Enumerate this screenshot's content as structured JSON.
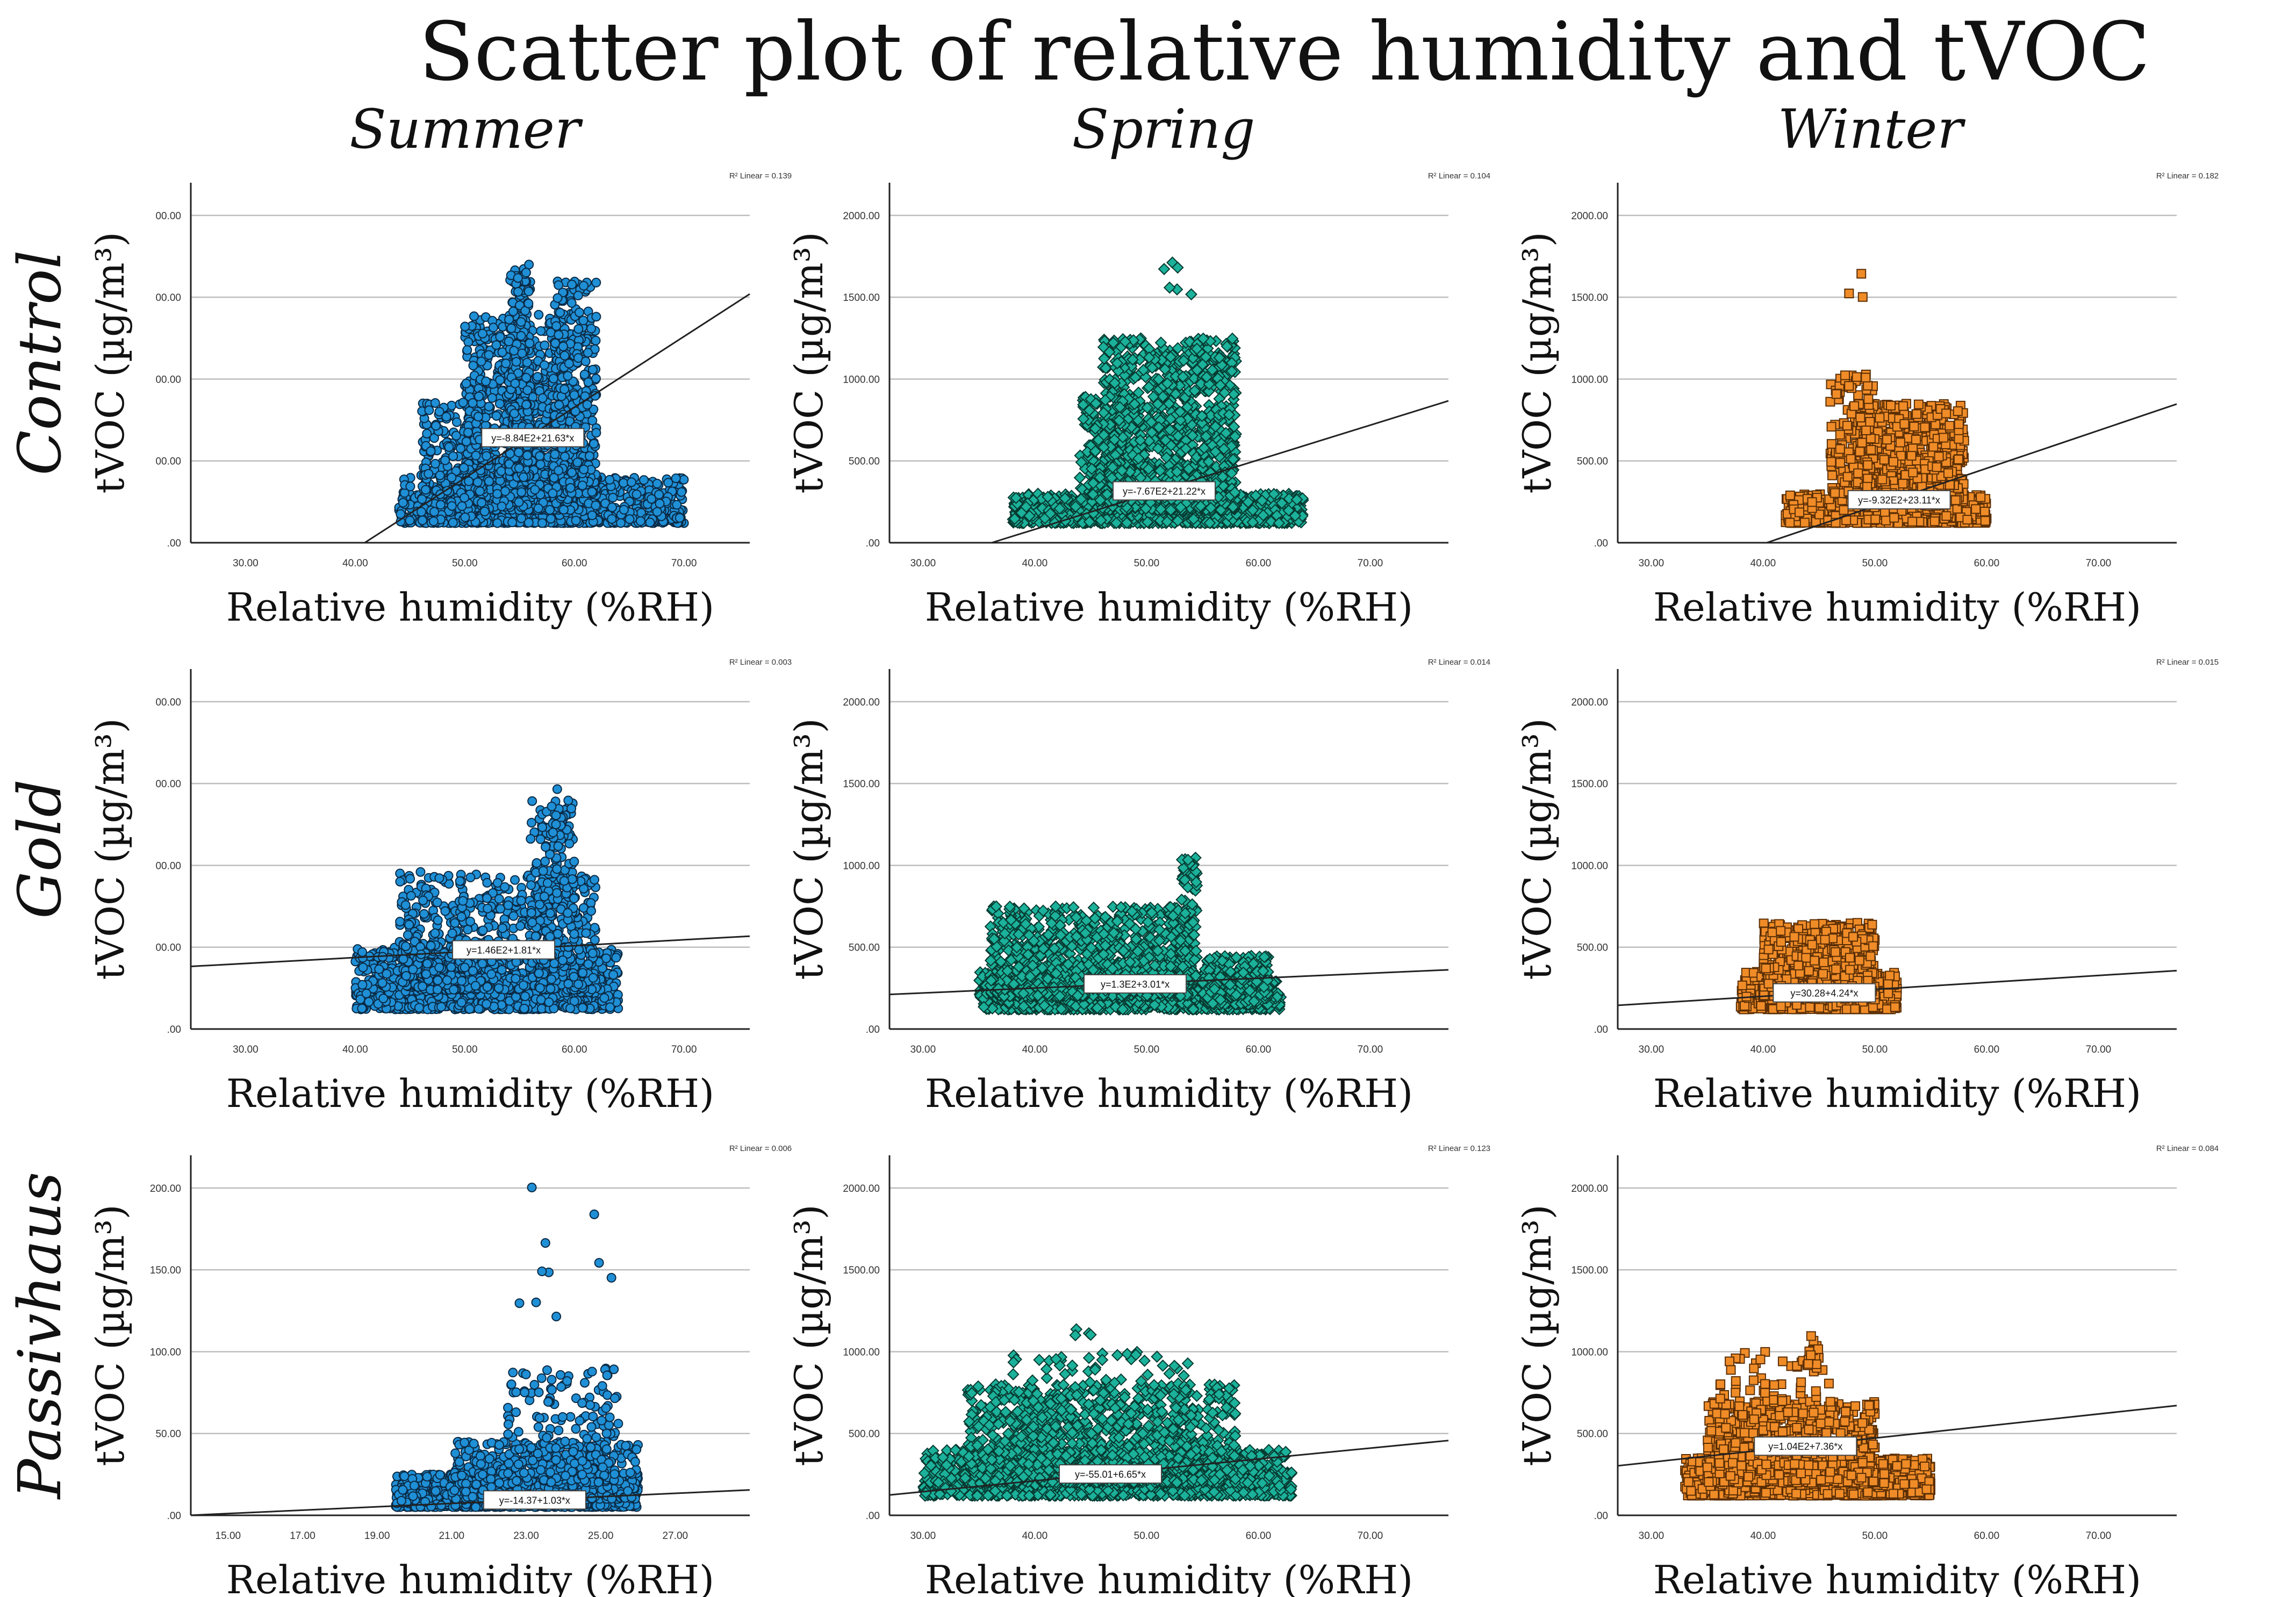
{
  "title": "Scatter plot of relative humidity and tVOC",
  "seasons": [
    "Summer",
    "Spring",
    "Winter"
  ],
  "buildings": [
    "Control",
    "Gold",
    "Passivhaus"
  ],
  "axis_labels": {
    "x": "Relative humidity (%RH)",
    "y": "tVOC (µg/m³)"
  },
  "colors": {
    "summer": "#1f8fd6",
    "spring": "#1bb19a",
    "winter": "#f08c28"
  },
  "chart_data": [
    {
      "type": "scatter",
      "building": "Control",
      "season": "Summer",
      "marker": "circle",
      "color": "#1f8fd6",
      "xlim": [
        25,
        76
      ],
      "xticks": [
        30,
        40,
        50,
        60,
        70
      ],
      "xtick_labels": [
        "30.00",
        "40.00",
        "50.00",
        "60.00",
        "70.00"
      ],
      "ylim": [
        0,
        1100
      ],
      "yticks": [
        0,
        250,
        500,
        750,
        1000
      ],
      "ytick_labels": [
        ".00",
        "00.00",
        "00.00",
        "00.00",
        "00.00"
      ],
      "fit": {
        "intercept": -884,
        "slope": 21.63
      },
      "equation": "y=-8.84E2+21.63*x",
      "r2_label": "R² Linear = 0.139",
      "clusters": [
        {
          "x": [
            44,
            70
          ],
          "y": [
            60,
            200
          ],
          "n": 900
        },
        {
          "x": [
            50,
            60
          ],
          "y": [
            100,
            700
          ],
          "n": 900
        },
        {
          "x": [
            54,
            56
          ],
          "y": [
            200,
            850
          ],
          "n": 300
        },
        {
          "x": [
            58,
            62
          ],
          "y": [
            150,
            800
          ],
          "n": 400
        },
        {
          "x": [
            46,
            52
          ],
          "y": [
            60,
            450
          ],
          "n": 300
        }
      ]
    },
    {
      "type": "scatter",
      "building": "Control",
      "season": "Spring",
      "marker": "diamond",
      "color": "#1bb19a",
      "xlim": [
        27,
        77
      ],
      "xticks": [
        30,
        40,
        50,
        60,
        70
      ],
      "xtick_labels": [
        "30.00",
        "40.00",
        "50.00",
        "60.00",
        "70.00"
      ],
      "ylim": [
        0,
        2200
      ],
      "yticks": [
        0,
        500,
        1000,
        1500,
        2000
      ],
      "ytick_labels": [
        ".00",
        "500.00",
        "1000.00",
        "1500.00",
        "2000.00"
      ],
      "fit": {
        "intercept": -767,
        "slope": 21.22
      },
      "equation": "y=-7.67E2+21.22*x",
      "r2_label": "R² Linear = 0.104",
      "clusters": [
        {
          "x": [
            38,
            64
          ],
          "y": [
            120,
            300
          ],
          "n": 1000
        },
        {
          "x": [
            46,
            58
          ],
          "y": [
            200,
            1250
          ],
          "n": 1200
        },
        {
          "x": [
            44,
            48
          ],
          "y": [
            250,
            900
          ],
          "n": 200
        },
        {
          "x": [
            51,
            54
          ],
          "y": [
            1500,
            1850
          ],
          "n": 6
        }
      ]
    },
    {
      "type": "scatter",
      "building": "Control",
      "season": "Winter",
      "marker": "square",
      "color": "#f08c28",
      "xlim": [
        27,
        77
      ],
      "xticks": [
        30,
        40,
        50,
        60,
        70
      ],
      "xtick_labels": [
        "30.00",
        "40.00",
        "50.00",
        "60.00",
        "70.00"
      ],
      "ylim": [
        0,
        2200
      ],
      "yticks": [
        0,
        500,
        1000,
        1500,
        2000
      ],
      "ytick_labels": [
        ".00",
        "500.00",
        "1000.00",
        "1500.00",
        "2000.00"
      ],
      "fit": {
        "intercept": -932,
        "slope": 23.11
      },
      "equation": "y=-9.32E2+23.11*x",
      "r2_label": "R² Linear = 0.182",
      "clusters": [
        {
          "x": [
            42,
            60
          ],
          "y": [
            120,
            300
          ],
          "n": 700
        },
        {
          "x": [
            48,
            58
          ],
          "y": [
            250,
            850
          ],
          "n": 800
        },
        {
          "x": [
            46,
            50
          ],
          "y": [
            300,
            1050
          ],
          "n": 150
        },
        {
          "x": [
            47,
            49
          ],
          "y": [
            1500,
            1750
          ],
          "n": 3
        }
      ]
    },
    {
      "type": "scatter",
      "building": "Gold",
      "season": "Summer",
      "marker": "circle",
      "color": "#1f8fd6",
      "xlim": [
        25,
        76
      ],
      "xticks": [
        30,
        40,
        50,
        60,
        70
      ],
      "xtick_labels": [
        "30.00",
        "40.00",
        "50.00",
        "60.00",
        "70.00"
      ],
      "ylim": [
        0,
        1100
      ],
      "yticks": [
        0,
        250,
        500,
        750,
        1000
      ],
      "ytick_labels": [
        ".00",
        "00.00",
        "00.00",
        "00.00",
        "00.00"
      ],
      "fit": {
        "intercept": 146,
        "slope": 1.81
      },
      "equation": "y=1.46E2+1.81*x",
      "r2_label": "R² Linear = 0.003",
      "clusters": [
        {
          "x": [
            40,
            64
          ],
          "y": [
            60,
            250
          ],
          "n": 1000
        },
        {
          "x": [
            44,
            62
          ],
          "y": [
            120,
            480
          ],
          "n": 700
        },
        {
          "x": [
            56,
            60
          ],
          "y": [
            200,
            700
          ],
          "n": 200
        },
        {
          "x": [
            57,
            59
          ],
          "y": [
            550,
            800
          ],
          "n": 20
        }
      ]
    },
    {
      "type": "scatter",
      "building": "Gold",
      "season": "Spring",
      "marker": "diamond",
      "color": "#1bb19a",
      "xlim": [
        27,
        77
      ],
      "xticks": [
        30,
        40,
        50,
        60,
        70
      ],
      "xtick_labels": [
        "30.00",
        "40.00",
        "50.00",
        "60.00",
        "70.00"
      ],
      "ylim": [
        0,
        2200
      ],
      "yticks": [
        0,
        500,
        1000,
        1500,
        2000
      ],
      "ytick_labels": [
        ".00",
        "500.00",
        "1000.00",
        "1500.00",
        "2000.00"
      ],
      "fit": {
        "intercept": 130,
        "slope": 3.01
      },
      "equation": "y=1.3E2+3.01*x",
      "r2_label": "R² Linear = 0.014",
      "clusters": [
        {
          "x": [
            35,
            62
          ],
          "y": [
            120,
            350
          ],
          "n": 1200
        },
        {
          "x": [
            36,
            54
          ],
          "y": [
            200,
            750
          ],
          "n": 1000
        },
        {
          "x": [
            53,
            54.5
          ],
          "y": [
            300,
            1050
          ],
          "n": 120
        },
        {
          "x": [
            55,
            61
          ],
          "y": [
            150,
            450
          ],
          "n": 300
        }
      ]
    },
    {
      "type": "scatter",
      "building": "Gold",
      "season": "Winter",
      "marker": "square",
      "color": "#f08c28",
      "xlim": [
        27,
        77
      ],
      "xticks": [
        30,
        40,
        50,
        60,
        70
      ],
      "xtick_labels": [
        "30.00",
        "40.00",
        "50.00",
        "60.00",
        "70.00"
      ],
      "ylim": [
        0,
        2200
      ],
      "yticks": [
        0,
        500,
        1000,
        1500,
        2000
      ],
      "ytick_labels": [
        ".00",
        "500.00",
        "1000.00",
        "1500.00",
        "2000.00"
      ],
      "fit": {
        "intercept": 30.28,
        "slope": 4.24
      },
      "equation": "y=30.28+4.24*x",
      "r2_label": "R² Linear = 0.015",
      "clusters": [
        {
          "x": [
            38,
            52
          ],
          "y": [
            120,
            350
          ],
          "n": 900
        },
        {
          "x": [
            40,
            50
          ],
          "y": [
            200,
            650
          ],
          "n": 700
        }
      ]
    },
    {
      "type": "scatter",
      "building": "Passivhaus",
      "season": "Summer",
      "marker": "circle",
      "color": "#1f8fd6",
      "xlim": [
        14,
        29
      ],
      "xticks": [
        15,
        17,
        19,
        21,
        23,
        25,
        27
      ],
      "xtick_labels": [
        "15.00",
        "17.00",
        "19.00",
        "21.00",
        "23.00",
        "25.00",
        "27.00"
      ],
      "ylim": [
        0,
        220
      ],
      "yticks": [
        0,
        50,
        100,
        150,
        200
      ],
      "ytick_labels": [
        ".00",
        "50.00",
        "100.00",
        "150.00",
        "200.00"
      ],
      "fit": {
        "intercept": -14.37,
        "slope": 1.03
      },
      "equation": "y=-14.37+1.03*x",
      "r2_label": "R² Linear = 0.006",
      "clusters": [
        {
          "x": [
            19.5,
            26
          ],
          "y": [
            5,
            25
          ],
          "n": 1200
        },
        {
          "x": [
            21,
            26
          ],
          "y": [
            10,
            45
          ],
          "n": 500
        },
        {
          "x": [
            22.5,
            25.5
          ],
          "y": [
            20,
            90
          ],
          "n": 200
        },
        {
          "x": [
            22.8,
            25.5
          ],
          "y": [
            120,
            210
          ],
          "n": 10
        }
      ]
    },
    {
      "type": "scatter",
      "building": "Passivhaus",
      "season": "Spring",
      "marker": "diamond",
      "color": "#1bb19a",
      "xlim": [
        27,
        77
      ],
      "xticks": [
        30,
        40,
        50,
        60,
        70
      ],
      "xtick_labels": [
        "30.00",
        "40.00",
        "50.00",
        "60.00",
        "70.00"
      ],
      "ylim": [
        0,
        2200
      ],
      "yticks": [
        0,
        500,
        1000,
        1500,
        2000
      ],
      "ytick_labels": [
        ".00",
        "500.00",
        "1000.00",
        "1500.00",
        "2000.00"
      ],
      "fit": {
        "intercept": -55.01,
        "slope": 6.65
      },
      "equation": "y=-55.01+6.65*x",
      "r2_label": "R² Linear = 0.123",
      "clusters": [
        {
          "x": [
            30,
            63
          ],
          "y": [
            120,
            400
          ],
          "n": 1500
        },
        {
          "x": [
            34,
            58
          ],
          "y": [
            200,
            800
          ],
          "n": 1000
        },
        {
          "x": [
            38,
            54
          ],
          "y": [
            500,
            1000
          ],
          "n": 150
        },
        {
          "x": [
            43,
            45
          ],
          "y": [
            1100,
            1400
          ],
          "n": 4
        }
      ]
    },
    {
      "type": "scatter",
      "building": "Passivhaus",
      "season": "Winter",
      "marker": "square",
      "color": "#f08c28",
      "xlim": [
        27,
        77
      ],
      "xticks": [
        30,
        40,
        50,
        60,
        70
      ],
      "xtick_labels": [
        "30.00",
        "40.00",
        "50.00",
        "60.00",
        "70.00"
      ],
      "ylim": [
        0,
        2200
      ],
      "yticks": [
        0,
        500,
        1000,
        1500,
        2000
      ],
      "ytick_labels": [
        ".00",
        "500.00",
        "1000.00",
        "1500.00",
        "2000.00"
      ],
      "fit": {
        "intercept": 104,
        "slope": 7.36
      },
      "equation": "y=1.04E2+7.36*x",
      "r2_label": "R² Linear = 0.084",
      "clusters": [
        {
          "x": [
            33,
            55
          ],
          "y": [
            120,
            350
          ],
          "n": 1200
        },
        {
          "x": [
            35,
            50
          ],
          "y": [
            200,
            700
          ],
          "n": 700
        },
        {
          "x": [
            36,
            46
          ],
          "y": [
            500,
            1000
          ],
          "n": 120
        },
        {
          "x": [
            44,
            45
          ],
          "y": [
            900,
            1100
          ],
          "n": 15
        }
      ]
    }
  ]
}
